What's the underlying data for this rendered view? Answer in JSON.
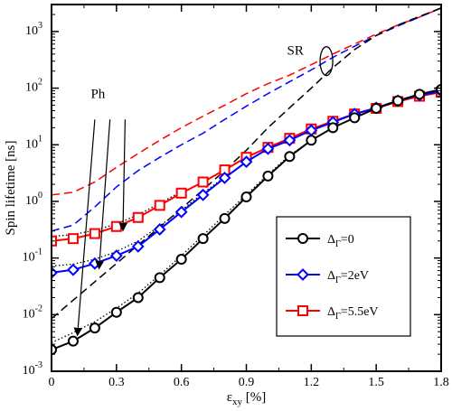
{
  "chart_data": {
    "type": "line",
    "xlabel": "ε_xy [%]",
    "xlabel_main": "ε",
    "xlabel_sub": "xy",
    "xlabel_unit": " [%]",
    "ylabel": "Spin lifetime [ns]",
    "xlim": [
      0,
      1.8
    ],
    "ylim": [
      0.001,
      3000
    ],
    "y_scale": "log",
    "grid": false,
    "legend_position": "lower-right",
    "x_ticks": [
      "0",
      "0.3",
      "0.6",
      "0.9",
      "1.2",
      "1.5",
      "1.8"
    ],
    "y_ticks": [
      {
        "base": "10",
        "exp": "-3"
      },
      {
        "base": "10",
        "exp": "-2"
      },
      {
        "base": "10",
        "exp": "-1"
      },
      {
        "base": "10",
        "exp": "0"
      },
      {
        "base": "10",
        "exp": "1"
      },
      {
        "base": "10",
        "exp": "2"
      },
      {
        "base": "10",
        "exp": "3"
      }
    ],
    "series": [
      {
        "name": "Δ_Γ=0",
        "legend_main": "Δ",
        "legend_sub": "Γ",
        "legend_value": "=0",
        "color": "#000000",
        "marker": "circle",
        "x": [
          0,
          0.1,
          0.2,
          0.3,
          0.4,
          0.5,
          0.6,
          0.7,
          0.8,
          0.9,
          1.0,
          1.1,
          1.2,
          1.3,
          1.4,
          1.5,
          1.6,
          1.7,
          1.8
        ],
        "y": [
          0.0024,
          0.0034,
          0.0058,
          0.011,
          0.02,
          0.045,
          0.095,
          0.22,
          0.5,
          1.2,
          2.8,
          6.2,
          12,
          20,
          30,
          44,
          60,
          78,
          95
        ]
      },
      {
        "name": "Δ_Γ=2eV",
        "legend_main": "Δ",
        "legend_sub": "Γ",
        "legend_value": "=2eV",
        "color": "#0000ff",
        "marker": "diamond",
        "x": [
          0,
          0.1,
          0.2,
          0.3,
          0.4,
          0.5,
          0.6,
          0.7,
          0.8,
          0.9,
          1.0,
          1.1,
          1.2,
          1.3,
          1.4,
          1.5,
          1.6,
          1.7,
          1.8
        ],
        "y": [
          0.055,
          0.062,
          0.08,
          0.11,
          0.16,
          0.32,
          0.65,
          1.3,
          2.6,
          5.0,
          8.5,
          12,
          18,
          25,
          35,
          45,
          60,
          75,
          88
        ]
      },
      {
        "name": "Δ_Γ=5.5eV",
        "legend_main": "Δ",
        "legend_sub": "Γ",
        "legend_value": "=5.5eV",
        "color": "#ff0000",
        "marker": "square",
        "x": [
          0,
          0.1,
          0.2,
          0.3,
          0.4,
          0.5,
          0.6,
          0.7,
          0.8,
          0.9,
          1.0,
          1.1,
          1.2,
          1.3,
          1.4,
          1.5,
          1.6,
          1.7,
          1.8
        ],
        "y": [
          0.2,
          0.22,
          0.27,
          0.36,
          0.52,
          0.85,
          1.4,
          2.2,
          3.6,
          6.0,
          9.0,
          13,
          19,
          26,
          35,
          44,
          58,
          72,
          85
        ]
      }
    ],
    "dashed_curves": [
      {
        "color": "#ff0000",
        "x": [
          0,
          0.1,
          0.2,
          0.3,
          0.4,
          0.5,
          0.6,
          0.7,
          0.8,
          0.9,
          1.0,
          1.1,
          1.2,
          1.3,
          1.4,
          1.5,
          1.6,
          1.7,
          1.8
        ],
        "y": [
          1.3,
          1.45,
          2.2,
          4.0,
          7.0,
          12,
          20,
          32,
          50,
          80,
          120,
          170,
          260,
          400,
          600,
          900,
          1300,
          1800,
          2600
        ]
      },
      {
        "color": "#0000ff",
        "x": [
          0,
          0.1,
          0.2,
          0.3,
          0.4,
          0.5,
          0.6,
          0.7,
          0.8,
          0.9,
          1.0,
          1.1,
          1.2,
          1.3,
          1.4,
          1.5,
          1.6,
          1.7,
          1.8
        ],
        "y": [
          0.3,
          0.38,
          0.8,
          1.8,
          3.5,
          6.0,
          10,
          16,
          28,
          48,
          80,
          130,
          210,
          350,
          550,
          850,
          1250,
          1800,
          2600
        ]
      },
      {
        "color": "#000000",
        "x": [
          0,
          0.1,
          0.2,
          0.3,
          0.4,
          0.5,
          0.6,
          0.7,
          0.8,
          0.9,
          1.0,
          1.1,
          1.2,
          1.3,
          1.4,
          1.5,
          1.6,
          1.7,
          1.8
        ],
        "y": [
          0.0085,
          0.018,
          0.038,
          0.08,
          0.17,
          0.35,
          0.75,
          1.6,
          3.5,
          8.0,
          20,
          45,
          100,
          230,
          480,
          850,
          1300,
          1850,
          2600
        ]
      }
    ],
    "dotted_curves": [
      {
        "color": "#000000",
        "x": [
          0,
          0.1,
          0.2,
          0.3,
          0.4,
          0.5,
          0.6,
          0.7,
          0.8,
          0.9,
          1.0,
          1.1,
          1.2
        ],
        "y": [
          0.0032,
          0.0048,
          0.0075,
          0.013,
          0.024,
          0.05,
          0.11,
          0.25,
          0.58,
          1.3,
          3.0,
          6.5,
          12
        ]
      },
      {
        "color": "#000000",
        "x": [
          0,
          0.1,
          0.2,
          0.3,
          0.4,
          0.5,
          0.6,
          0.7,
          0.8
        ],
        "y": [
          0.072,
          0.078,
          0.095,
          0.13,
          0.2,
          0.37,
          0.7,
          1.4,
          2.7
        ]
      },
      {
        "color": "#000000",
        "x": [
          0,
          0.1,
          0.2,
          0.3,
          0.4,
          0.5,
          0.6
        ],
        "y": [
          0.24,
          0.26,
          0.31,
          0.4,
          0.58,
          0.92,
          1.5
        ]
      }
    ],
    "annotations": [
      {
        "text": "Ph",
        "x": 0.24,
        "y": 80
      },
      {
        "text": "SR",
        "x": 1.18,
        "y": 470
      }
    ]
  }
}
